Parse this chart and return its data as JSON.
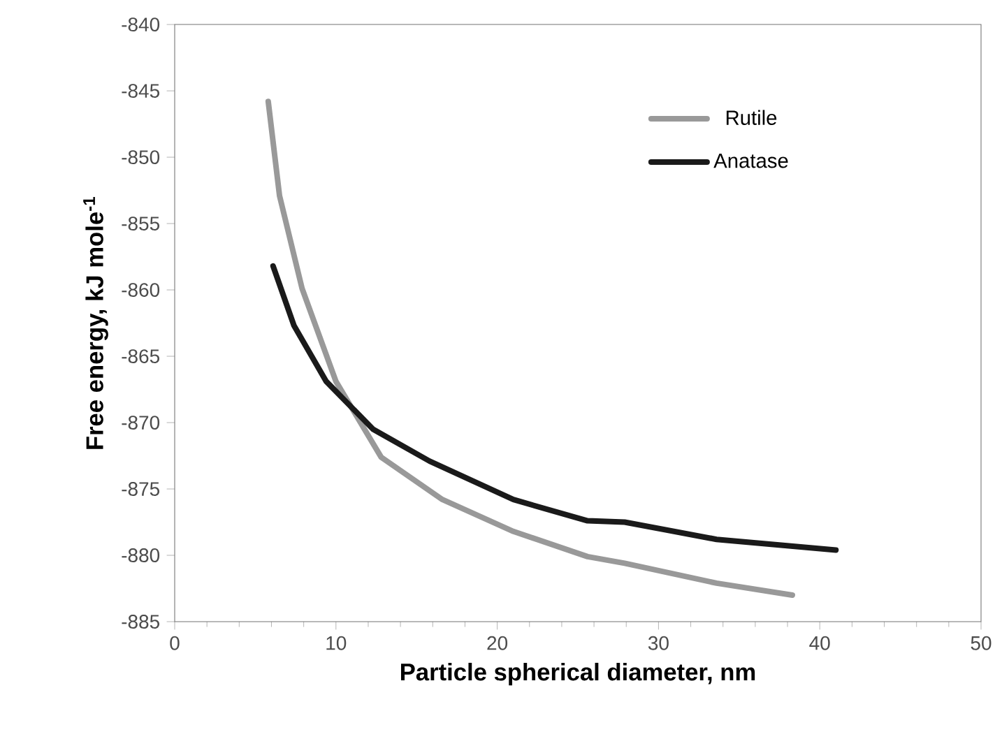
{
  "chart_data": {
    "type": "line",
    "xlabel": "Particle spherical diameter, nm",
    "ylabel": "Free energy, kJ mole$^{-1}$",
    "xlim": [
      0,
      50
    ],
    "ylim": [
      -885,
      -840
    ],
    "xticks": [
      0,
      10,
      20,
      30,
      40,
      50
    ],
    "yticks": [
      -885,
      -880,
      -875,
      -870,
      -865,
      -860,
      -855,
      -850,
      -845,
      -840
    ],
    "legend": "top right",
    "series": [
      {
        "name": "Rutile",
        "color": "#999999",
        "x": [
          5.8,
          6.5,
          7.9,
          10.0,
          12.8,
          16.6,
          21.0,
          25.6,
          27.9,
          33.6,
          38.3
        ],
        "values": [
          -845.8,
          -852.9,
          -859.9,
          -866.9,
          -872.6,
          -875.8,
          -878.2,
          -880.1,
          -880.6,
          -882.1,
          -883.0
        ]
      },
      {
        "name": "Anatase",
        "color": "#1a1a1a",
        "x": [
          6.1,
          7.4,
          9.4,
          12.3,
          15.8,
          21.0,
          25.6,
          27.9,
          33.6,
          41.0
        ],
        "values": [
          -858.2,
          -862.7,
          -866.9,
          -870.5,
          -872.9,
          -875.8,
          -877.4,
          -877.5,
          -878.8,
          -879.6
        ]
      }
    ]
  }
}
